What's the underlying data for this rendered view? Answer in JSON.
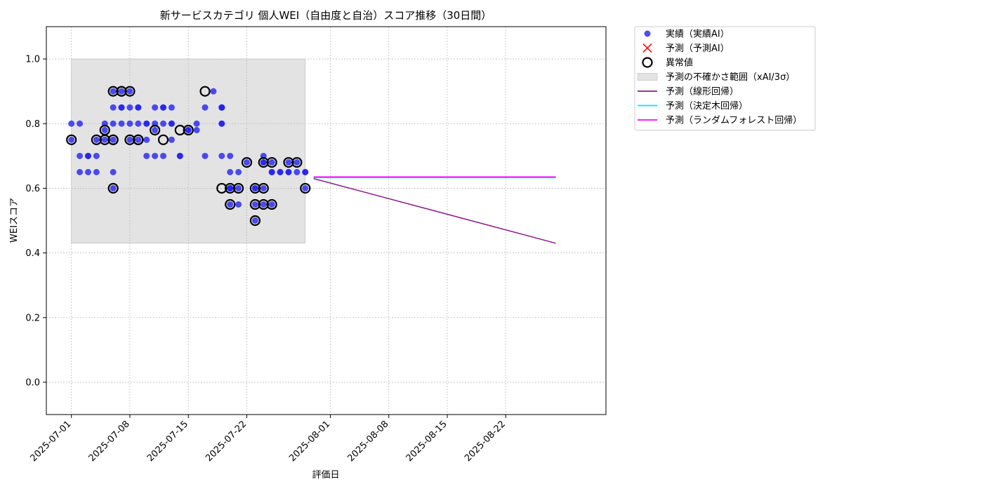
{
  "chart_data": {
    "type": "scatter",
    "title": "新サービスカテゴリ 個人WEI（自由度と自治）スコア推移（30日間）",
    "xlabel": "評価日",
    "ylabel": "WEIスコア",
    "xlim": [
      "2025-06-28",
      "2025-09-03"
    ],
    "ylim": [
      -0.1,
      1.1
    ],
    "grid": true,
    "legend_position": "outside-top-right",
    "x_ticks": [
      "2025-07-01",
      "2025-07-08",
      "2025-07-15",
      "2025-07-22",
      "2025-08-01",
      "2025-08-08",
      "2025-08-15",
      "2025-08-22"
    ],
    "y_ticks": [
      0.0,
      0.2,
      0.4,
      0.6,
      0.8,
      1.0
    ],
    "uncertainty_band": {
      "name": "予測の不確かさ範囲（xAI/3σ）",
      "x_range": [
        "2025-07-01",
        "2025-07-29"
      ],
      "y_range": [
        0.43,
        1.0
      ],
      "color": "#cccccc"
    },
    "series": [
      {
        "name": "実績（実績AI）",
        "kind": "scatter",
        "color": "#2222ee",
        "points": [
          [
            "2025-07-01",
            0.75
          ],
          [
            "2025-07-01",
            0.8
          ],
          [
            "2025-07-02",
            0.7
          ],
          [
            "2025-07-02",
            0.8
          ],
          [
            "2025-07-02",
            0.65
          ],
          [
            "2025-07-03",
            0.7
          ],
          [
            "2025-07-03",
            0.65
          ],
          [
            "2025-07-03",
            0.7
          ],
          [
            "2025-07-04",
            0.65
          ],
          [
            "2025-07-04",
            0.7
          ],
          [
            "2025-07-04",
            0.75
          ],
          [
            "2025-07-05",
            0.75
          ],
          [
            "2025-07-05",
            0.78
          ],
          [
            "2025-07-05",
            0.8
          ],
          [
            "2025-07-06",
            0.6
          ],
          [
            "2025-07-06",
            0.65
          ],
          [
            "2025-07-06",
            0.75
          ],
          [
            "2025-07-06",
            0.8
          ],
          [
            "2025-07-06",
            0.85
          ],
          [
            "2025-07-06",
            0.9
          ],
          [
            "2025-07-07",
            0.85
          ],
          [
            "2025-07-07",
            0.9
          ],
          [
            "2025-07-07",
            0.8
          ],
          [
            "2025-07-07",
            0.85
          ],
          [
            "2025-07-08",
            0.9
          ],
          [
            "2025-07-08",
            0.85
          ],
          [
            "2025-07-08",
            0.8
          ],
          [
            "2025-07-08",
            0.75
          ],
          [
            "2025-07-09",
            0.8
          ],
          [
            "2025-07-09",
            0.85
          ],
          [
            "2025-07-09",
            0.75
          ],
          [
            "2025-07-09",
            0.85
          ],
          [
            "2025-07-10",
            0.75
          ],
          [
            "2025-07-10",
            0.8
          ],
          [
            "2025-07-10",
            0.8
          ],
          [
            "2025-07-10",
            0.7
          ],
          [
            "2025-07-11",
            0.85
          ],
          [
            "2025-07-11",
            0.8
          ],
          [
            "2025-07-11",
            0.78
          ],
          [
            "2025-07-11",
            0.7
          ],
          [
            "2025-07-12",
            0.85
          ],
          [
            "2025-07-12",
            0.85
          ],
          [
            "2025-07-12",
            0.8
          ],
          [
            "2025-07-12",
            0.7
          ],
          [
            "2025-07-13",
            0.8
          ],
          [
            "2025-07-13",
            0.75
          ],
          [
            "2025-07-13",
            0.85
          ],
          [
            "2025-07-13",
            0.8
          ],
          [
            "2025-07-14",
            0.7
          ],
          [
            "2025-07-14",
            0.7
          ],
          [
            "2025-07-15",
            0.78
          ],
          [
            "2025-07-15",
            0.78
          ],
          [
            "2025-07-16",
            0.8
          ],
          [
            "2025-07-16",
            0.78
          ],
          [
            "2025-07-17",
            0.85
          ],
          [
            "2025-07-17",
            0.7
          ],
          [
            "2025-07-18",
            0.9
          ],
          [
            "2025-07-19",
            0.85
          ],
          [
            "2025-07-19",
            0.85
          ],
          [
            "2025-07-19",
            0.85
          ],
          [
            "2025-07-19",
            0.8
          ],
          [
            "2025-07-19",
            0.8
          ],
          [
            "2025-07-19",
            0.7
          ],
          [
            "2025-07-20",
            0.7
          ],
          [
            "2025-07-20",
            0.65
          ],
          [
            "2025-07-20",
            0.6
          ],
          [
            "2025-07-20",
            0.6
          ],
          [
            "2025-07-20",
            0.6
          ],
          [
            "2025-07-20",
            0.55
          ],
          [
            "2025-07-21",
            0.55
          ],
          [
            "2025-07-21",
            0.6
          ],
          [
            "2025-07-21",
            0.65
          ],
          [
            "2025-07-22",
            0.68
          ],
          [
            "2025-07-23",
            0.6
          ],
          [
            "2025-07-23",
            0.55
          ],
          [
            "2025-07-23",
            0.5
          ],
          [
            "2025-07-23",
            0.6
          ],
          [
            "2025-07-24",
            0.55
          ],
          [
            "2025-07-24",
            0.6
          ],
          [
            "2025-07-24",
            0.68
          ],
          [
            "2025-07-24",
            0.7
          ],
          [
            "2025-07-24",
            0.68
          ],
          [
            "2025-07-25",
            0.65
          ],
          [
            "2025-07-25",
            0.68
          ],
          [
            "2025-07-25",
            0.55
          ],
          [
            "2025-07-25",
            0.65
          ],
          [
            "2025-07-26",
            0.65
          ],
          [
            "2025-07-26",
            0.65
          ],
          [
            "2025-07-27",
            0.68
          ],
          [
            "2025-07-27",
            0.65
          ],
          [
            "2025-07-27",
            0.65
          ],
          [
            "2025-07-28",
            0.65
          ],
          [
            "2025-07-28",
            0.68
          ],
          [
            "2025-07-29",
            0.65
          ],
          [
            "2025-07-29",
            0.6
          ],
          [
            "2025-07-29",
            0.65
          ]
        ]
      },
      {
        "name": "予測（予測AI）",
        "kind": "marker",
        "color": "#ee2222",
        "points": []
      },
      {
        "name": "異常値",
        "kind": "outlier",
        "color": "#000000",
        "points": [
          [
            "2025-07-01",
            0.75
          ],
          [
            "2025-07-04",
            0.75
          ],
          [
            "2025-07-05",
            0.75
          ],
          [
            "2025-07-05",
            0.78
          ],
          [
            "2025-07-06",
            0.6
          ],
          [
            "2025-07-06",
            0.75
          ],
          [
            "2025-07-06",
            0.75
          ],
          [
            "2025-07-06",
            0.9
          ],
          [
            "2025-07-07",
            0.9
          ],
          [
            "2025-07-07",
            0.9
          ],
          [
            "2025-07-08",
            0.9
          ],
          [
            "2025-07-08",
            0.75
          ],
          [
            "2025-07-09",
            0.75
          ],
          [
            "2025-07-09",
            0.75
          ],
          [
            "2025-07-11",
            0.78
          ],
          [
            "2025-07-12",
            0.75
          ],
          [
            "2025-07-14",
            0.78
          ],
          [
            "2025-07-15",
            0.78
          ],
          [
            "2025-07-17",
            0.9
          ],
          [
            "2025-07-19",
            0.6
          ],
          [
            "2025-07-20",
            0.6
          ],
          [
            "2025-07-20",
            0.55
          ],
          [
            "2025-07-21",
            0.6
          ],
          [
            "2025-07-22",
            0.68
          ],
          [
            "2025-07-23",
            0.6
          ],
          [
            "2025-07-23",
            0.55
          ],
          [
            "2025-07-23",
            0.5
          ],
          [
            "2025-07-24",
            0.55
          ],
          [
            "2025-07-24",
            0.6
          ],
          [
            "2025-07-24",
            0.68
          ],
          [
            "2025-07-25",
            0.68
          ],
          [
            "2025-07-25",
            0.55
          ],
          [
            "2025-07-27",
            0.68
          ],
          [
            "2025-07-28",
            0.68
          ],
          [
            "2025-07-29",
            0.6
          ]
        ]
      },
      {
        "name": "予測（線形回帰）",
        "kind": "line",
        "color": "#8b1a8b",
        "points": [
          [
            "2025-07-30",
            0.63
          ],
          [
            "2025-08-28",
            0.43
          ]
        ]
      },
      {
        "name": "予測（決定木回帰）",
        "kind": "line",
        "color": "#00e5ff",
        "points": [
          [
            "2025-07-30",
            0.633
          ],
          [
            "2025-08-28",
            0.633
          ]
        ]
      },
      {
        "name": "予測（ランダムフォレスト回帰）",
        "kind": "line",
        "color": "#ff00ff",
        "points": [
          [
            "2025-07-30",
            0.635
          ],
          [
            "2025-08-28",
            0.635
          ]
        ]
      }
    ]
  }
}
